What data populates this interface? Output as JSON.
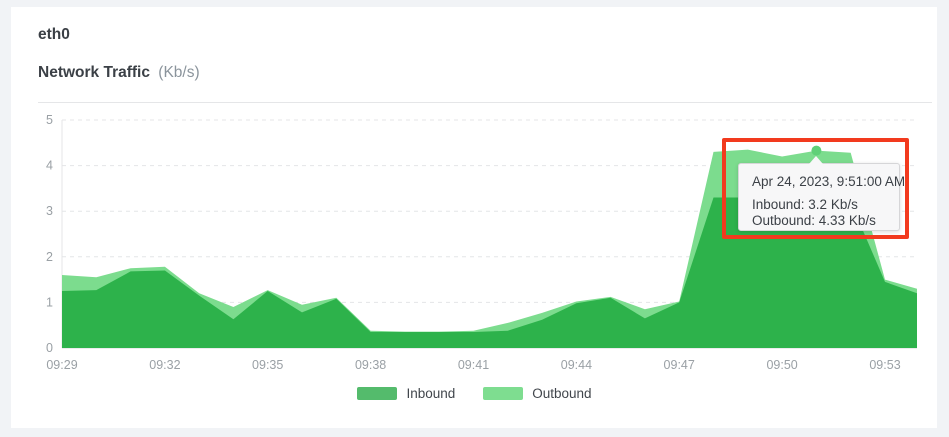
{
  "colors": {
    "page_background": "#f1f3f6",
    "card_background": "#ffffff",
    "inbound_green": "#2db24b",
    "outbound_green": "#7cdc8e",
    "annotation_red": "#f23a1e"
  },
  "header": {
    "device": "eth0",
    "title": "Network Traffic",
    "unit": "(Kb/s)"
  },
  "tooltip": {
    "timestamp": "Apr 24, 2023, 9:51:00 AM",
    "inbound_line": "Inbound: 3.2 Kb/s",
    "outbound_line": "Outbound: 4.33 Kb/s"
  },
  "annotation": {
    "shape": "rectangle",
    "purpose": "highlight-tooltip",
    "color": "#f23a1e"
  },
  "chart_data": {
    "type": "area",
    "title": "Network Traffic",
    "ylabel": "Kb/s",
    "xlabel": "",
    "ylim": [
      0,
      5
    ],
    "y_ticks": [
      0,
      1,
      2,
      3,
      4,
      5
    ],
    "grid": "horizontal-dashed",
    "legend_position": "bottom-center",
    "x_minutes": [
      29,
      30,
      31,
      32,
      33,
      34,
      35,
      36,
      37,
      38,
      39,
      40,
      41,
      42,
      43,
      44,
      45,
      46,
      47,
      48,
      49,
      50,
      51,
      52,
      53,
      54
    ],
    "x_tick_labels": [
      {
        "minute": 29,
        "label": "09:29"
      },
      {
        "minute": 32,
        "label": "09:32"
      },
      {
        "minute": 35,
        "label": "09:35"
      },
      {
        "minute": 38,
        "label": "09:38"
      },
      {
        "minute": 41,
        "label": "09:41"
      },
      {
        "minute": 44,
        "label": "09:44"
      },
      {
        "minute": 47,
        "label": "09:47"
      },
      {
        "minute": 50,
        "label": "09:50"
      },
      {
        "minute": 53,
        "label": "09:53"
      }
    ],
    "series": [
      {
        "name": "Inbound",
        "color": "#2db24b",
        "legend_color": "#54bb6c",
        "values": [
          1.25,
          1.27,
          1.68,
          1.7,
          1.15,
          0.63,
          1.25,
          0.78,
          1.08,
          0.35,
          0.35,
          0.35,
          0.35,
          0.38,
          0.62,
          0.98,
          1.1,
          0.65,
          1.0,
          3.3,
          3.3,
          3.15,
          3.2,
          3.2,
          1.45,
          1.2
        ]
      },
      {
        "name": "Outbound",
        "color": "#7cdc8e",
        "legend_color": "#7edd90",
        "values": [
          1.6,
          1.55,
          1.75,
          1.78,
          1.2,
          0.9,
          1.27,
          0.95,
          1.1,
          0.38,
          0.36,
          0.36,
          0.38,
          0.55,
          0.77,
          1.02,
          1.12,
          0.85,
          1.02,
          4.3,
          4.35,
          4.2,
          4.33,
          4.28,
          1.5,
          1.3
        ]
      }
    ],
    "hover_point": {
      "series": "Outbound",
      "time": "09:51",
      "minute": 51,
      "inbound_value": 3.2,
      "outbound_value": 4.33,
      "dot_color": "#5fd078"
    }
  }
}
